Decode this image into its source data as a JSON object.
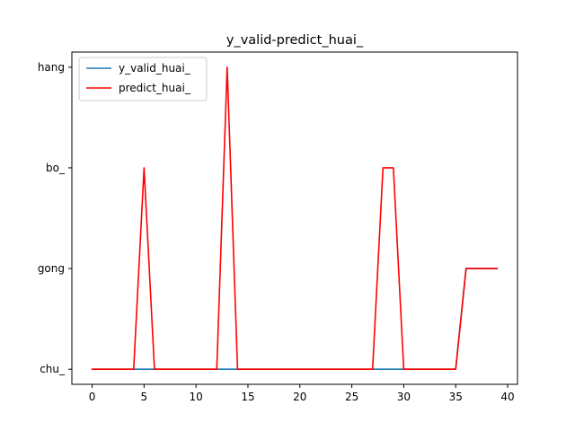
{
  "chart_data": {
    "type": "line",
    "title": "y_valid-predict_huai_",
    "xlabel": "",
    "ylabel": "",
    "xlim": [
      -1.95,
      40.95
    ],
    "ylim": [
      -0.15,
      3.15
    ],
    "grid": false,
    "legend_position": "top-left",
    "x_ticks": [
      0,
      5,
      10,
      15,
      20,
      25,
      30,
      35,
      40
    ],
    "y_ticks": [
      0,
      1,
      2,
      3
    ],
    "y_tick_labels": [
      "chu_",
      "gong",
      "bo_",
      "hang"
    ],
    "x": [
      0,
      1,
      2,
      3,
      4,
      5,
      6,
      7,
      8,
      9,
      10,
      11,
      12,
      13,
      14,
      15,
      16,
      17,
      18,
      19,
      20,
      21,
      22,
      23,
      24,
      25,
      26,
      27,
      28,
      29,
      30,
      31,
      32,
      33,
      34,
      35,
      36,
      37,
      38,
      39
    ],
    "series": [
      {
        "name": "y_valid_huai_",
        "color": "#1f77b4",
        "values": [
          0,
          0,
          0,
          0,
          0,
          0,
          0,
          0,
          0,
          0,
          0,
          0,
          0,
          0,
          0,
          0,
          0,
          0,
          0,
          0,
          0,
          0,
          0,
          0,
          0,
          0,
          0,
          0,
          0,
          0,
          0,
          0,
          0,
          0,
          0,
          0,
          1,
          1,
          1,
          1
        ]
      },
      {
        "name": "predict_huai_",
        "color": "#ff0000",
        "values": [
          0,
          0,
          0,
          0,
          0,
          2,
          0,
          0,
          0,
          0,
          0,
          0,
          0,
          3,
          0,
          0,
          0,
          0,
          0,
          0,
          0,
          0,
          0,
          0,
          0,
          0,
          0,
          0,
          2,
          2,
          0,
          0,
          0,
          0,
          0,
          0,
          1,
          1,
          1,
          1
        ]
      }
    ]
  }
}
